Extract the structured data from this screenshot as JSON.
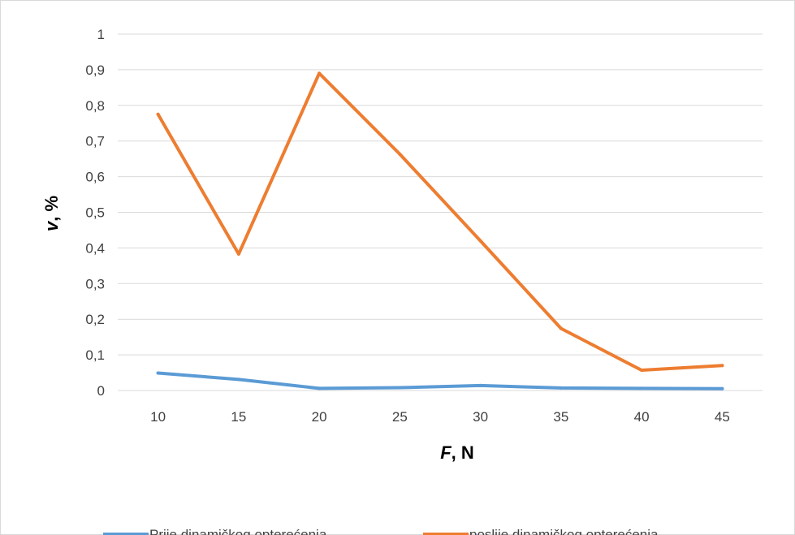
{
  "chart_data": {
    "type": "line",
    "x_title_var": "F",
    "x_title_unit": ", N",
    "y_title_var": "v",
    "y_title_unit": ", %",
    "categories": [
      "10",
      "15",
      "20",
      "25",
      "30",
      "35",
      "40",
      "45"
    ],
    "y_ticks": [
      "0",
      "0,1",
      "0,2",
      "0,3",
      "0,4",
      "0,5",
      "0,6",
      "0,7",
      "0,8",
      "0,9",
      "1"
    ],
    "ylim": [
      0,
      1
    ],
    "grid": true,
    "legend_position": "bottom",
    "series": [
      {
        "name": "Prije dinamičkog opterećenja",
        "color": "#5B9BD5",
        "values": [
          0.049,
          0.031,
          0.006,
          0.008,
          0.014,
          0.007,
          0.006,
          0.005
        ]
      },
      {
        "name": "poslije dinamičkog opterećenja",
        "color": "#ED7D31",
        "values": [
          0.775,
          0.383,
          0.89,
          0.663,
          0.42,
          0.174,
          0.057,
          0.07
        ]
      }
    ]
  }
}
